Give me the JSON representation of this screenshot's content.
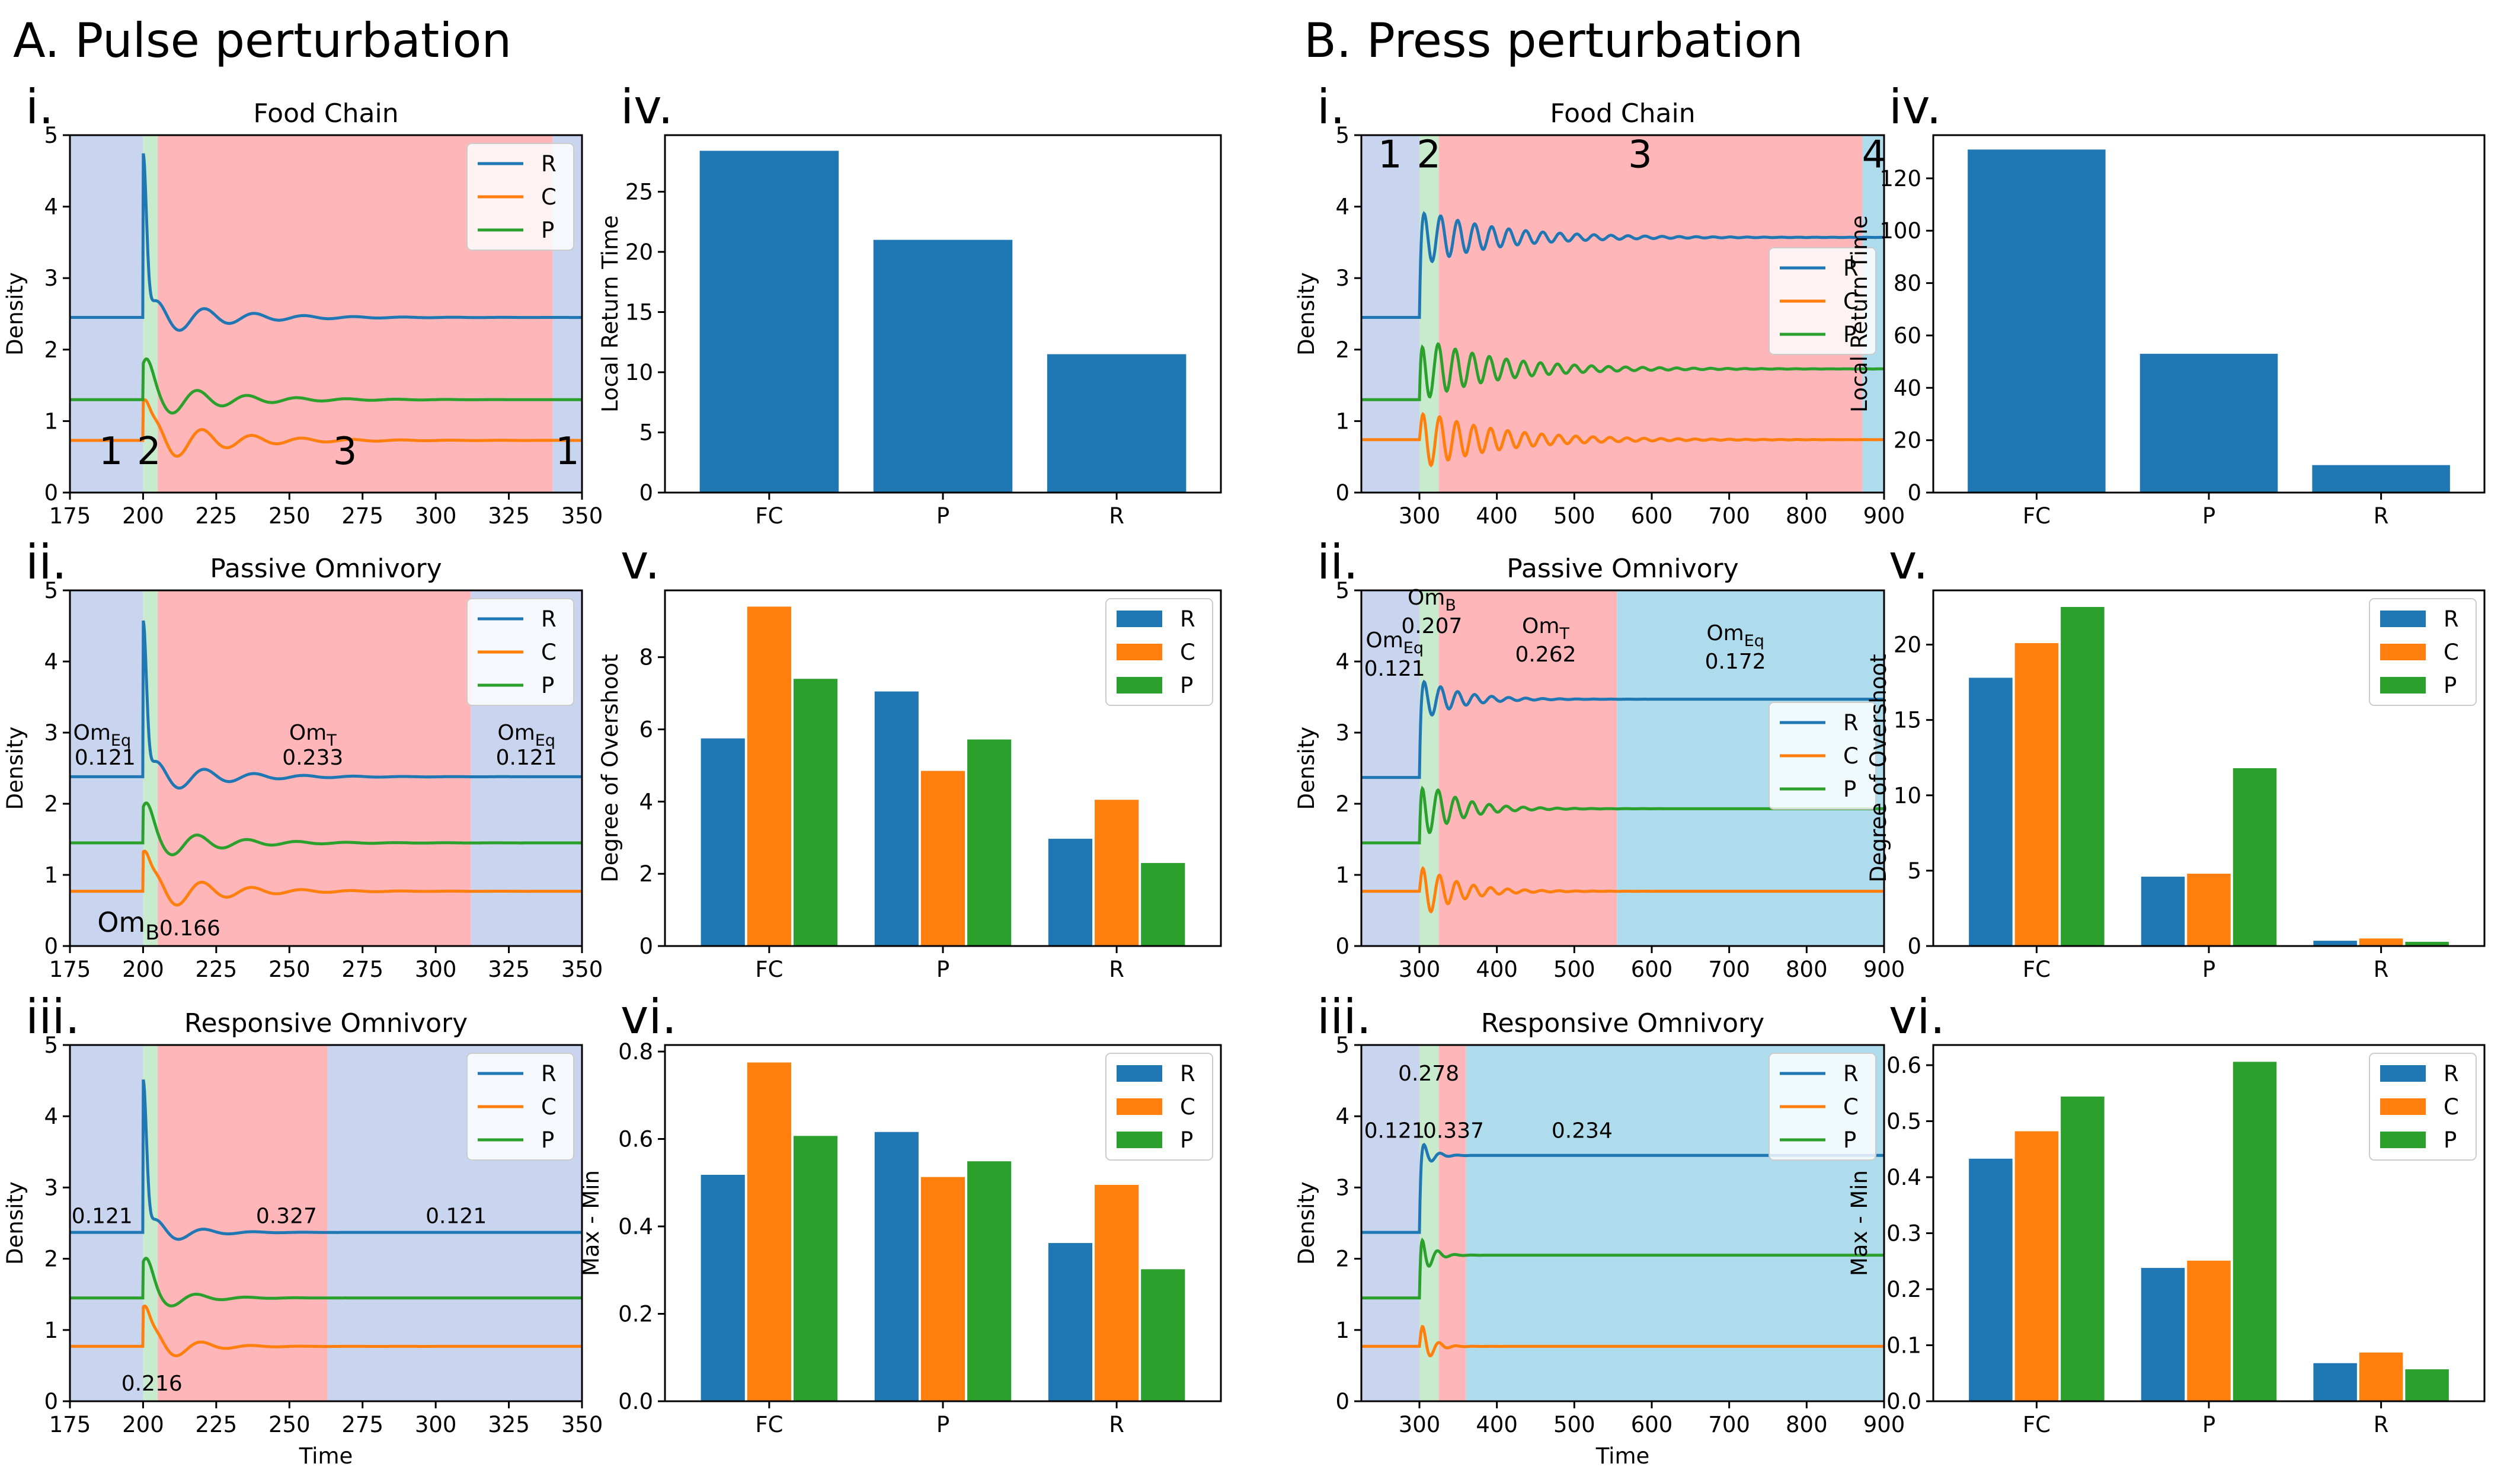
{
  "sections": {
    "A": "A. Pulse perturbation",
    "B": "B. Press perturbation"
  },
  "colors": {
    "R": "#1f77b4",
    "C": "#ff7f0e",
    "P": "#2ca02c",
    "blue_region": "#c9d5ee",
    "green_region": "#c7ebcc",
    "red_region": "#ffb6b9",
    "cyan_region": "#aedcec"
  },
  "chart_data": [
    {
      "id": "A-i",
      "type": "line",
      "panel_label": "i.",
      "title": "Food Chain",
      "xlabel": "",
      "ylabel": "Density",
      "xlim": [
        175,
        350
      ],
      "ylim": [
        0,
        5
      ],
      "xticks": [
        175,
        200,
        225,
        250,
        275,
        300,
        325,
        350
      ],
      "yticks": [
        0,
        1,
        2,
        3,
        4,
        5
      ],
      "legend": {
        "entries": [
          "R",
          "C",
          "P"
        ],
        "placement": "top-right"
      },
      "regions": [
        {
          "x0": 175,
          "x1": 200,
          "color": "blue"
        },
        {
          "x0": 200,
          "x1": 205,
          "color": "green"
        },
        {
          "x0": 205,
          "x1": 340,
          "color": "red"
        },
        {
          "x0": 340,
          "x1": 350,
          "color": "blue"
        }
      ],
      "annotations": [
        {
          "text": "1",
          "x": 189,
          "y": 0.4,
          "size": "big"
        },
        {
          "text": "2",
          "x": 202,
          "y": 0.4,
          "size": "big"
        },
        {
          "text": "3",
          "x": 269,
          "y": 0.4,
          "size": "big"
        },
        {
          "text": "1",
          "x": 345,
          "y": 0.4,
          "size": "big"
        }
      ],
      "series": [
        {
          "name": "R",
          "base": 2.45,
          "start": 200,
          "peak": 2.3,
          "spike_w": 1.6,
          "osc_amp": 0.32,
          "period": 17,
          "decay": 22,
          "phase_off": 0,
          "end": 350
        },
        {
          "name": "C",
          "base": 0.73,
          "start": 200,
          "peak": 0.55,
          "spike_w": 2.5,
          "osc_amp": 0.38,
          "period": 17,
          "decay": 22,
          "phase_off": 0.3,
          "end": 350
        },
        {
          "name": "P",
          "base": 1.3,
          "start": 200,
          "peak": 0.5,
          "spike_w": 3.5,
          "osc_amp": 0.3,
          "period": 17,
          "decay": 22,
          "phase_off": 0.9,
          "end": 350
        }
      ]
    },
    {
      "id": "A-ii",
      "type": "line",
      "panel_label": "ii.",
      "title": "Passive Omnivory",
      "xlabel": "",
      "ylabel": "Density",
      "xlim": [
        175,
        350
      ],
      "ylim": [
        0,
        5
      ],
      "xticks": [
        175,
        200,
        225,
        250,
        275,
        300,
        325,
        350
      ],
      "yticks": [
        0,
        1,
        2,
        3,
        4,
        5
      ],
      "legend": {
        "entries": [
          "R",
          "C",
          "P"
        ],
        "placement": "top-right"
      },
      "regions": [
        {
          "x0": 175,
          "x1": 200,
          "color": "blue"
        },
        {
          "x0": 200,
          "x1": 205,
          "color": "green"
        },
        {
          "x0": 205,
          "x1": 312,
          "color": "red"
        },
        {
          "x0": 312,
          "x1": 350,
          "color": "blue"
        }
      ],
      "annotations": [
        {
          "text": "OmEq",
          "x": 186,
          "y": 2.9
        },
        {
          "text": "0.121",
          "x": 187,
          "y": 2.55
        },
        {
          "text": "OmT",
          "x": 258,
          "y": 2.9
        },
        {
          "text": "0.233",
          "x": 258,
          "y": 2.55
        },
        {
          "text": "OmEq",
          "x": 331,
          "y": 2.9
        },
        {
          "text": "0.121",
          "x": 331,
          "y": 2.55
        },
        {
          "text": "OmB",
          "x": 195,
          "y": 0.2,
          "size": "mid"
        },
        {
          "text": "0.166",
          "x": 216,
          "y": 0.15
        }
      ],
      "series": [
        {
          "name": "R",
          "base": 2.38,
          "start": 200,
          "peak": 2.2,
          "spike_w": 1.6,
          "osc_amp": 0.3,
          "period": 17,
          "decay": 20,
          "phase_off": 0,
          "end": 350
        },
        {
          "name": "C",
          "base": 0.77,
          "start": 200,
          "peak": 0.55,
          "spike_w": 2.5,
          "osc_amp": 0.35,
          "period": 17,
          "decay": 20,
          "phase_off": 0.3,
          "end": 350
        },
        {
          "name": "P",
          "base": 1.45,
          "start": 200,
          "peak": 0.5,
          "spike_w": 3.5,
          "osc_amp": 0.28,
          "period": 17,
          "decay": 20,
          "phase_off": 0.9,
          "end": 350
        }
      ]
    },
    {
      "id": "A-iii",
      "type": "line",
      "panel_label": "iii.",
      "title": "Responsive Omnivory",
      "xlabel": "Time",
      "ylabel": "Density",
      "xlim": [
        175,
        350
      ],
      "ylim": [
        0,
        5
      ],
      "xticks": [
        175,
        200,
        225,
        250,
        275,
        300,
        325,
        350
      ],
      "yticks": [
        0,
        1,
        2,
        3,
        4,
        5
      ],
      "legend": {
        "entries": [
          "R",
          "C",
          "P"
        ],
        "placement": "top-right"
      },
      "regions": [
        {
          "x0": 175,
          "x1": 200,
          "color": "blue"
        },
        {
          "x0": 200,
          "x1": 205,
          "color": "green"
        },
        {
          "x0": 205,
          "x1": 263,
          "color": "red"
        },
        {
          "x0": 263,
          "x1": 350,
          "color": "blue"
        }
      ],
      "annotations": [
        {
          "text": "0.121",
          "x": 186,
          "y": 2.5
        },
        {
          "text": "0.327",
          "x": 249,
          "y": 2.5
        },
        {
          "text": "0.121",
          "x": 307,
          "y": 2.5
        },
        {
          "text": "0.216",
          "x": 203,
          "y": 0.15
        }
      ],
      "series": [
        {
          "name": "R",
          "base": 2.37,
          "start": 200,
          "peak": 2.15,
          "spike_w": 1.6,
          "osc_amp": 0.3,
          "period": 17,
          "decay": 11,
          "phase_off": 0,
          "end": 350
        },
        {
          "name": "C",
          "base": 0.77,
          "start": 200,
          "peak": 0.55,
          "spike_w": 2.5,
          "osc_amp": 0.38,
          "period": 17,
          "decay": 11,
          "phase_off": 0.3,
          "end": 350
        },
        {
          "name": "P",
          "base": 1.45,
          "start": 200,
          "peak": 0.5,
          "spike_w": 3.5,
          "osc_amp": 0.28,
          "period": 17,
          "decay": 11,
          "phase_off": 0.9,
          "end": 350
        }
      ]
    },
    {
      "id": "A-iv",
      "type": "bar",
      "panel_label": "iv.",
      "title": "",
      "xlabel": "",
      "ylabel": "Local Return Time",
      "categories": [
        "FC",
        "P",
        "R"
      ],
      "values": [
        28.4,
        21.0,
        11.5
      ],
      "ylim": [
        0,
        29.7
      ],
      "yticks": [
        0,
        5,
        10,
        15,
        20,
        25
      ]
    },
    {
      "id": "A-v",
      "type": "bar",
      "panel_label": "v.",
      "title": "",
      "xlabel": "",
      "ylabel": "Degree of Overshoot",
      "categories": [
        "FC",
        "P",
        "R"
      ],
      "series": [
        {
          "name": "R",
          "values": [
            5.75,
            7.05,
            2.97
          ]
        },
        {
          "name": "C",
          "values": [
            9.4,
            4.85,
            4.05
          ]
        },
        {
          "name": "P",
          "values": [
            7.4,
            5.72,
            2.3
          ]
        }
      ],
      "ylim": [
        0,
        9.85
      ],
      "yticks": [
        0,
        2,
        4,
        6,
        8
      ],
      "legend": {
        "entries": [
          "R",
          "C",
          "P"
        ],
        "placement": "top-right"
      }
    },
    {
      "id": "A-vi",
      "type": "bar",
      "panel_label": "vi.",
      "title": "",
      "xlabel": "",
      "ylabel": "Max - Min",
      "categories": [
        "FC",
        "P",
        "R"
      ],
      "series": [
        {
          "name": "R",
          "values": [
            0.518,
            0.616,
            0.362
          ]
        },
        {
          "name": "C",
          "values": [
            0.775,
            0.513,
            0.495
          ]
        },
        {
          "name": "P",
          "values": [
            0.607,
            0.549,
            0.302
          ]
        }
      ],
      "ylim": [
        0,
        0.815
      ],
      "yticks": [
        0.0,
        0.2,
        0.4,
        0.6,
        0.8
      ],
      "tick_decimals": 1,
      "legend": {
        "entries": [
          "R",
          "C",
          "P"
        ],
        "placement": "top-right"
      }
    },
    {
      "id": "B-i",
      "type": "line",
      "panel_label": "i.",
      "title": "Food Chain",
      "xlabel": "",
      "ylabel": "Density",
      "xlim": [
        225,
        900
      ],
      "ylim": [
        0,
        5
      ],
      "xticks": [
        300,
        400,
        500,
        600,
        700,
        800,
        900
      ],
      "yticks": [
        0,
        1,
        2,
        3,
        4,
        5
      ],
      "legend": {
        "entries": [
          "R",
          "C",
          "P"
        ],
        "placement": "center-right"
      },
      "regions": [
        {
          "x0": 225,
          "x1": 300,
          "color": "blue"
        },
        {
          "x0": 300,
          "x1": 325,
          "color": "green"
        },
        {
          "x0": 325,
          "x1": 872,
          "color": "red"
        },
        {
          "x0": 872,
          "x1": 900,
          "color": "cyan"
        }
      ],
      "annotations": [
        {
          "text": "1",
          "x": 262,
          "y": 4.55,
          "size": "big"
        },
        {
          "text": "2",
          "x": 312,
          "y": 4.55,
          "size": "big"
        },
        {
          "text": "3",
          "x": 585,
          "y": 4.55,
          "size": "big"
        },
        {
          "text": "4",
          "x": 887,
          "y": 4.55,
          "size": "big"
        }
      ],
      "series": [
        {
          "name": "R",
          "base": 2.45,
          "step": 1.12,
          "start": 300,
          "peak": 0,
          "spike_w": 3,
          "osc_amp": 0.4,
          "period": 22,
          "decay": 95,
          "phase_off": 0,
          "end": 900
        },
        {
          "name": "C",
          "base": 0.74,
          "step": 0,
          "start": 300,
          "peak": 0,
          "spike_w": 3,
          "osc_amp": 0.42,
          "period": 22,
          "decay": 95,
          "phase_off": 0.4,
          "end": 900
        },
        {
          "name": "P",
          "base": 1.3,
          "step": 0.43,
          "start": 300,
          "peak": 0,
          "spike_w": 3,
          "osc_amp": 0.45,
          "period": 22,
          "decay": 95,
          "phase_off": 0.9,
          "end": 900
        }
      ]
    },
    {
      "id": "B-ii",
      "type": "line",
      "panel_label": "ii.",
      "title": "Passive Omnivory",
      "xlabel": "",
      "ylabel": "Density",
      "xlim": [
        225,
        900
      ],
      "ylim": [
        0,
        5
      ],
      "xticks": [
        300,
        400,
        500,
        600,
        700,
        800,
        900
      ],
      "yticks": [
        0,
        1,
        2,
        3,
        4,
        5
      ],
      "legend": {
        "entries": [
          "R",
          "C",
          "P"
        ],
        "placement": "center-right"
      },
      "regions": [
        {
          "x0": 225,
          "x1": 300,
          "color": "blue"
        },
        {
          "x0": 300,
          "x1": 325,
          "color": "green"
        },
        {
          "x0": 325,
          "x1": 555,
          "color": "red"
        },
        {
          "x0": 555,
          "x1": 900,
          "color": "cyan"
        }
      ],
      "annotations": [
        {
          "text": "OmB",
          "x": 316,
          "y": 4.8
        },
        {
          "text": "0.207",
          "x": 316,
          "y": 4.4
        },
        {
          "text": "OmEq",
          "x": 268,
          "y": 4.2
        },
        {
          "text": "0.121",
          "x": 268,
          "y": 3.8
        },
        {
          "text": "OmT",
          "x": 463,
          "y": 4.4
        },
        {
          "text": "0.262",
          "x": 463,
          "y": 4.0
        },
        {
          "text": "OmEq",
          "x": 708,
          "y": 4.3
        },
        {
          "text": "0.172",
          "x": 708,
          "y": 3.9
        }
      ],
      "series": [
        {
          "name": "R",
          "base": 2.37,
          "step": 1.1,
          "start": 300,
          "peak": 0,
          "spike_w": 3,
          "osc_amp": 0.32,
          "period": 22,
          "decay": 45,
          "phase_off": 0,
          "end": 900
        },
        {
          "name": "C",
          "base": 0.77,
          "step": 0,
          "start": 300,
          "peak": 0,
          "spike_w": 3,
          "osc_amp": 0.4,
          "period": 22,
          "decay": 45,
          "phase_off": 0.4,
          "end": 900
        },
        {
          "name": "P",
          "base": 1.45,
          "step": 0.48,
          "start": 300,
          "peak": 0,
          "spike_w": 3,
          "osc_amp": 0.45,
          "period": 22,
          "decay": 45,
          "phase_off": 0.9,
          "end": 900
        }
      ]
    },
    {
      "id": "B-iii",
      "type": "line",
      "panel_label": "iii.",
      "title": "Responsive Omnivory",
      "xlabel": "Time",
      "ylabel": "Density",
      "xlim": [
        225,
        900
      ],
      "ylim": [
        0,
        5
      ],
      "xticks": [
        300,
        400,
        500,
        600,
        700,
        800,
        900
      ],
      "yticks": [
        0,
        1,
        2,
        3,
        4,
        5
      ],
      "legend": {
        "entries": [
          "R",
          "C",
          "P"
        ],
        "placement": "top-right"
      },
      "regions": [
        {
          "x0": 225,
          "x1": 300,
          "color": "blue"
        },
        {
          "x0": 300,
          "x1": 325,
          "color": "green"
        },
        {
          "x0": 325,
          "x1": 360,
          "color": "red"
        },
        {
          "x0": 360,
          "x1": 900,
          "color": "cyan"
        }
      ],
      "annotations": [
        {
          "text": "0.278",
          "x": 312,
          "y": 4.5
        },
        {
          "text": "0.121",
          "x": 268,
          "y": 3.7
        },
        {
          "text": "0.337",
          "x": 344,
          "y": 3.7
        },
        {
          "text": "0.234",
          "x": 510,
          "y": 3.7
        }
      ],
      "series": [
        {
          "name": "R",
          "base": 2.37,
          "step": 1.08,
          "start": 300,
          "peak": 0,
          "spike_w": 3,
          "osc_amp": 0.3,
          "period": 22,
          "decay": 12,
          "phase_off": 0,
          "end": 900
        },
        {
          "name": "C",
          "base": 0.77,
          "step": 0,
          "start": 300,
          "peak": 0,
          "spike_w": 3,
          "osc_amp": 0.45,
          "period": 22,
          "decay": 12,
          "phase_off": 0.4,
          "end": 900
        },
        {
          "name": "P",
          "base": 1.45,
          "step": 0.6,
          "start": 300,
          "peak": 0,
          "spike_w": 3,
          "osc_amp": 0.45,
          "period": 22,
          "decay": 12,
          "phase_off": 0.9,
          "end": 900
        }
      ]
    },
    {
      "id": "B-iv",
      "type": "bar",
      "panel_label": "iv.",
      "title": "",
      "xlabel": "",
      "ylabel": "Local Return Time",
      "categories": [
        "FC",
        "P",
        "R"
      ],
      "values": [
        131,
        53,
        10.5
      ],
      "ylim": [
        0,
        136.5
      ],
      "yticks": [
        0,
        20,
        40,
        60,
        80,
        100,
        120
      ]
    },
    {
      "id": "B-v",
      "type": "bar",
      "panel_label": "v.",
      "title": "",
      "xlabel": "",
      "ylabel": "Degree of Overshoot",
      "categories": [
        "FC",
        "P",
        "R"
      ],
      "series": [
        {
          "name": "R",
          "values": [
            17.8,
            4.6,
            0.35
          ]
        },
        {
          "name": "C",
          "values": [
            20.1,
            4.8,
            0.5
          ]
        },
        {
          "name": "P",
          "values": [
            22.5,
            11.8,
            0.28
          ]
        }
      ],
      "ylim": [
        0,
        23.6
      ],
      "yticks": [
        0,
        5,
        10,
        15,
        20
      ],
      "legend": {
        "entries": [
          "R",
          "C",
          "P"
        ],
        "placement": "top-right"
      }
    },
    {
      "id": "B-vi",
      "type": "bar",
      "panel_label": "vi.",
      "title": "",
      "xlabel": "",
      "ylabel": "Max - Min",
      "categories": [
        "FC",
        "P",
        "R"
      ],
      "series": [
        {
          "name": "R",
          "values": [
            0.433,
            0.238,
            0.068
          ]
        },
        {
          "name": "C",
          "values": [
            0.482,
            0.251,
            0.087
          ]
        },
        {
          "name": "P",
          "values": [
            0.544,
            0.606,
            0.057
          ]
        }
      ],
      "ylim": [
        0,
        0.636
      ],
      "yticks": [
        0.0,
        0.1,
        0.2,
        0.3,
        0.4,
        0.5,
        0.6
      ],
      "tick_decimals": 1,
      "legend": {
        "entries": [
          "R",
          "C",
          "P"
        ],
        "placement": "top-right"
      }
    }
  ]
}
